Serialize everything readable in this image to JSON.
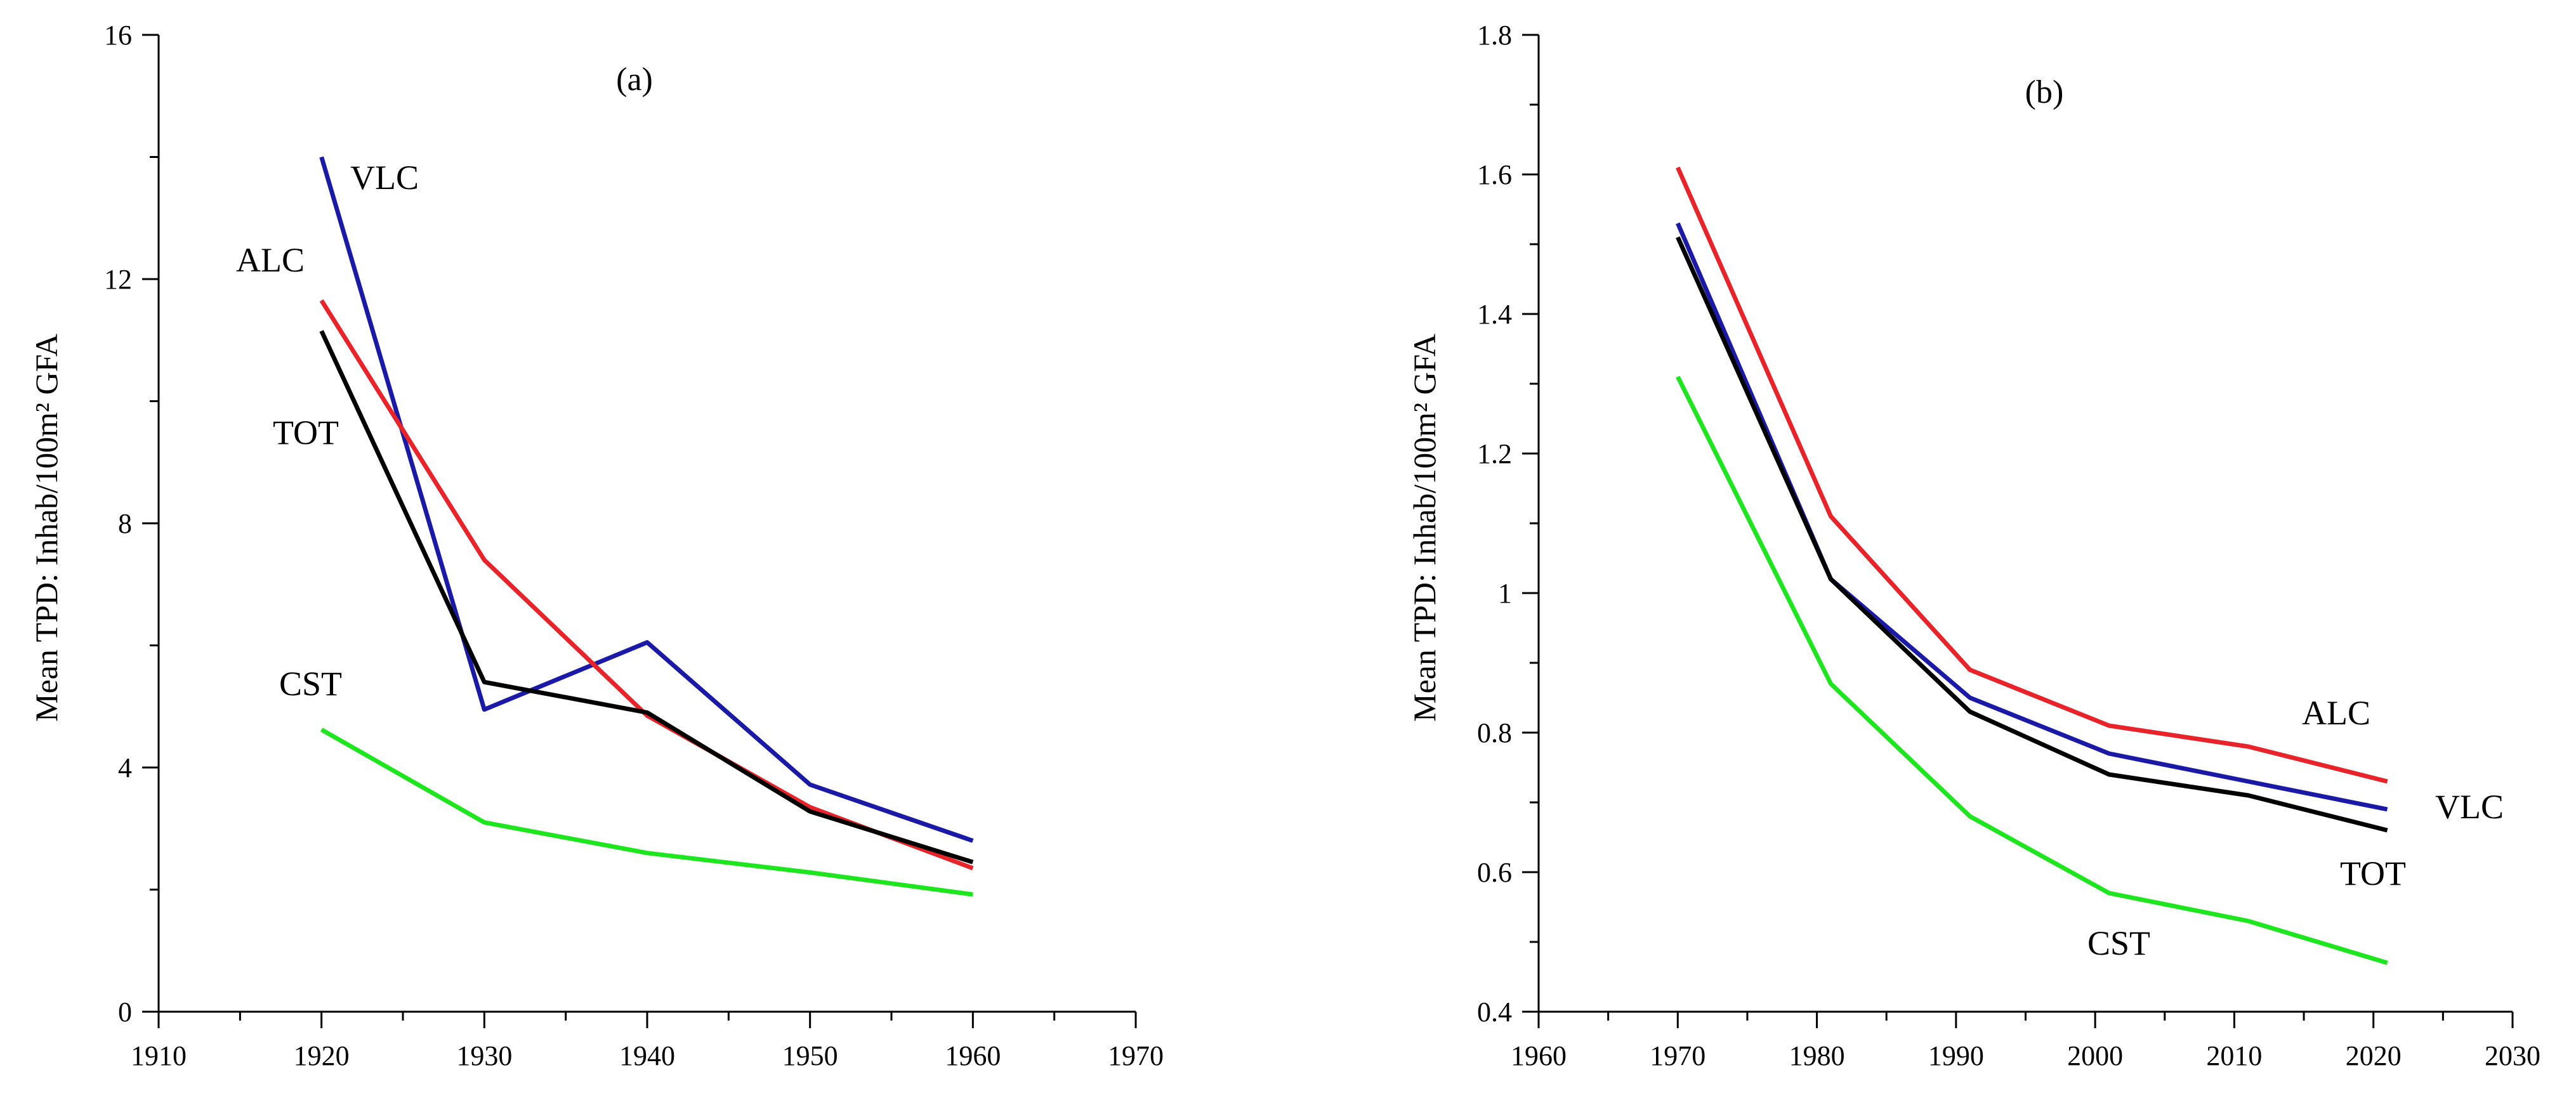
{
  "chart_data": [
    {
      "type": "line",
      "panel_label": "(a)",
      "xlabel": "",
      "ylabel": "Mean TPD: Inhab/100m² GFA",
      "xlim": [
        1910,
        1970
      ],
      "ylim": [
        0,
        16
      ],
      "x_ticks": [
        1910,
        1920,
        1930,
        1940,
        1950,
        1960,
        1970
      ],
      "y_ticks": [
        0,
        4,
        8,
        12,
        16
      ],
      "x_tick_labels": [
        "1910",
        "1920",
        "1930",
        "1940",
        "1950",
        "1960",
        "1970"
      ],
      "y_tick_labels": [
        "0",
        "4",
        "8",
        "12",
        "16"
      ],
      "grid": false,
      "x": [
        1920,
        1930,
        1940,
        1950,
        1960
      ],
      "series": [
        {
          "name": "VLC",
          "color": "#1a1aa6",
          "values": [
            14.0,
            4.95,
            6.05,
            3.72,
            2.8
          ]
        },
        {
          "name": "ALC",
          "color": "#e8232a",
          "values": [
            11.65,
            7.4,
            4.85,
            3.35,
            2.35
          ]
        },
        {
          "name": "TOT",
          "color": "#000000",
          "values": [
            11.15,
            5.4,
            4.9,
            3.28,
            2.45
          ]
        },
        {
          "name": "CST",
          "color": "#1ee61e",
          "values": [
            4.62,
            3.1,
            2.6,
            2.28,
            1.92
          ]
        }
      ]
    },
    {
      "type": "line",
      "panel_label": "(b)",
      "xlabel": "",
      "ylabel": "Mean TPD: Inhab/100m² GFA",
      "xlim": [
        1960,
        2030
      ],
      "ylim": [
        0.4,
        1.8
      ],
      "x_ticks": [
        1960,
        1970,
        1980,
        1990,
        2000,
        2010,
        2020,
        2030
      ],
      "y_ticks": [
        0.4,
        0.6,
        0.8,
        1.0,
        1.2,
        1.4,
        1.6,
        1.8
      ],
      "x_tick_labels": [
        "1960",
        "1970",
        "1980",
        "1990",
        "2000",
        "2010",
        "2020",
        "2030"
      ],
      "y_tick_labels": [
        "0.4",
        "0.6",
        "0.8",
        "1",
        "1.2",
        "1.4",
        "1.6",
        "1.8"
      ],
      "grid": false,
      "x": [
        1970,
        1981,
        1991,
        2001,
        2011,
        2021
      ],
      "series": [
        {
          "name": "ALC",
          "color": "#e8232a",
          "values": [
            1.61,
            1.11,
            0.89,
            0.81,
            0.78,
            0.73
          ]
        },
        {
          "name": "VLC",
          "color": "#1a1aa6",
          "values": [
            1.53,
            1.02,
            0.85,
            0.77,
            0.73,
            0.69
          ]
        },
        {
          "name": "TOT",
          "color": "#000000",
          "values": [
            1.51,
            1.02,
            0.83,
            0.74,
            0.71,
            0.66
          ]
        },
        {
          "name": "CST",
          "color": "#1ee61e",
          "values": [
            1.31,
            0.87,
            0.68,
            0.57,
            0.53,
            0.47
          ]
        }
      ]
    }
  ]
}
